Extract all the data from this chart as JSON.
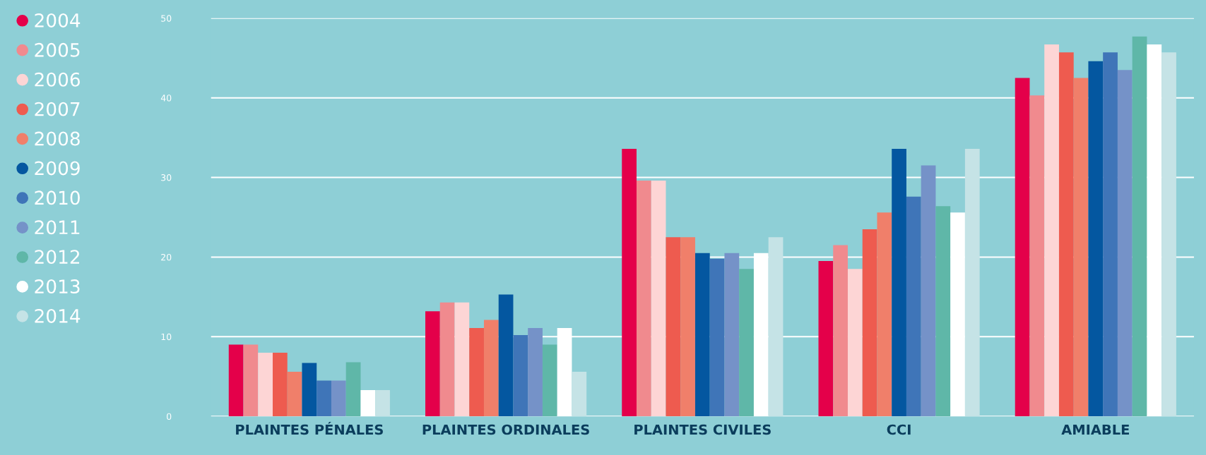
{
  "chart_data": {
    "type": "bar",
    "categories": [
      "PLAINTES PÉNALES",
      "PLAINTES ORDINALES",
      "PLAINTES CIVILES",
      "CCI",
      "AMIABLE"
    ],
    "series": [
      {
        "name": "2004",
        "color": "#e4004a",
        "values": [
          9,
          13.2,
          33.6,
          19.5,
          42.5
        ]
      },
      {
        "name": "2005",
        "color": "#f08a8e",
        "values": [
          9,
          14.3,
          29.6,
          21.5,
          40.3
        ]
      },
      {
        "name": "2006",
        "color": "#fdd5d5",
        "values": [
          8,
          14.3,
          29.6,
          18.5,
          46.7
        ]
      },
      {
        "name": "2007",
        "color": "#ee5b4f",
        "values": [
          8,
          11.1,
          22.5,
          23.5,
          45.7
        ]
      },
      {
        "name": "2008",
        "color": "#f07f6a",
        "values": [
          5.6,
          12.1,
          22.5,
          25.6,
          42.5
        ]
      },
      {
        "name": "2009",
        "color": "#0457a0",
        "values": [
          6.7,
          15.3,
          20.5,
          33.6,
          44.6
        ]
      },
      {
        "name": "2010",
        "color": "#3f75b8",
        "values": [
          4.5,
          10.2,
          19.8,
          27.6,
          45.7
        ]
      },
      {
        "name": "2011",
        "color": "#7592c8",
        "values": [
          4.5,
          11.1,
          20.5,
          31.5,
          43.5
        ]
      },
      {
        "name": "2012",
        "color": "#5fb7a8",
        "values": [
          6.8,
          9,
          18.5,
          26.4,
          47.7
        ]
      },
      {
        "name": "2013",
        "color": "#ffffff",
        "values": [
          3.3,
          11.1,
          20.5,
          25.6,
          46.7
        ]
      },
      {
        "name": "2014",
        "color": "#c5e3e6",
        "values": [
          3.3,
          5.6,
          22.5,
          33.6,
          45.7
        ]
      }
    ],
    "ylim": [
      0,
      50
    ],
    "yticks": [
      0,
      10,
      20,
      30,
      40,
      50
    ],
    "grid": "y",
    "legend": "left",
    "marker": "circle"
  }
}
